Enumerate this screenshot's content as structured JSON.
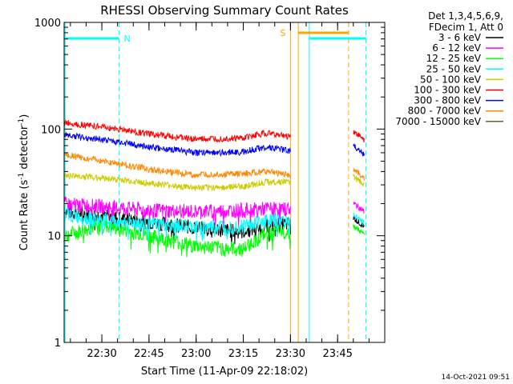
{
  "chart_data": {
    "type": "line",
    "title": "RHESSI Observing Summary Count Rates",
    "xlabel": "Start Time (11-Apr-09 22:18:02)",
    "ylabel_main": "Count Rate (s",
    "ylabel_sup1": "-1",
    "ylabel_mid": " detector",
    "ylabel_sup2": "-1",
    "ylabel_end": ")",
    "yscale": "log",
    "ylim": [
      1,
      1000
    ],
    "y_ticks": [
      "1",
      "10",
      "100",
      "1000"
    ],
    "x_ticks": [
      "22:30",
      "22:45",
      "23:00",
      "23:15",
      "23:30",
      "23:45"
    ],
    "x_tick_minutes": [
      12,
      27,
      42,
      57,
      72,
      87
    ],
    "x_range_minutes": [
      0,
      102
    ],
    "legend_title": [
      "Det 1,3,4,5,6,9,",
      "FDecim 1, Att 0"
    ],
    "legend_position": "top-right, outside plot",
    "series": [
      {
        "name": "3 - 6 keV",
        "color": "#000000",
        "values": [
          17,
          15.5,
          13.5,
          12,
          11,
          12.5,
          13
        ]
      },
      {
        "name": "6 - 12 keV",
        "color": "#ff00ff",
        "values": [
          20,
          19,
          17.5,
          17,
          17.5,
          18,
          18
        ]
      },
      {
        "name": "12 - 25 keV",
        "color": "#00ff00",
        "values": [
          10,
          12.5,
          10,
          8,
          7.5,
          10.5,
          11
        ]
      },
      {
        "name": "25 - 50 keV",
        "color": "#00ffff",
        "values": [
          16,
          14,
          13,
          12,
          12.5,
          14,
          14
        ]
      },
      {
        "name": "50 - 100 keV",
        "color": "#cccc00",
        "values": [
          37,
          35,
          31,
          28,
          29,
          32,
          32
        ]
      },
      {
        "name": "100 - 300 keV",
        "color": "#ff0000",
        "values": [
          115,
          105,
          90,
          80,
          82,
          92,
          85
        ]
      },
      {
        "name": "300 - 800 keV",
        "color": "#0000ff",
        "values": [
          88,
          80,
          68,
          60,
          61,
          68,
          62
        ]
      },
      {
        "name": "800 - 7000 keV",
        "color": "#ff8800",
        "values": [
          58,
          50,
          42,
          37,
          38,
          40,
          37
        ]
      },
      {
        "name": "7000 - 15000 keV",
        "color": "#556b2f",
        "values": []
      }
    ],
    "series_minutes": [
      0,
      12,
      27,
      42,
      57,
      64,
      72
    ],
    "saa_label": "S",
    "night_label": "N",
    "footer_date": "14-Oct-2021 09:51"
  }
}
